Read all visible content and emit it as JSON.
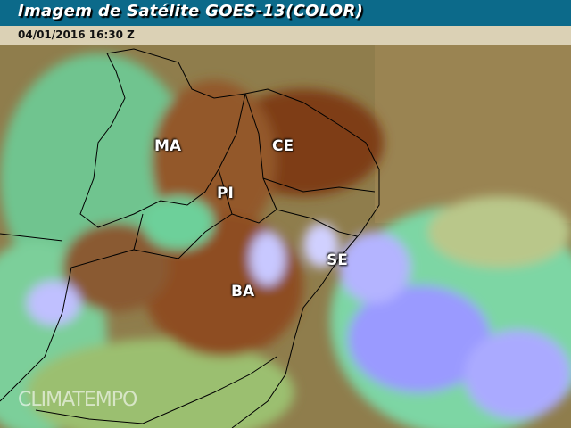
{
  "header": {
    "title": "Imagem de Satélite GOES-13(COLOR)",
    "timestamp": "04/01/2016 16:30 Z"
  },
  "states": [
    {
      "label": "MA"
    },
    {
      "label": "CE"
    },
    {
      "label": "PI"
    },
    {
      "label": "SE"
    },
    {
      "label": "BA"
    }
  ],
  "watermark": "CLIMATEMPO",
  "colors": {
    "title_bar": "#0c6a8a",
    "land_dry": "#8b4a1c",
    "ocean": "#8a7a4a",
    "cloud_high": "#9a9aff",
    "cloud_low": "#7fd9a0"
  }
}
